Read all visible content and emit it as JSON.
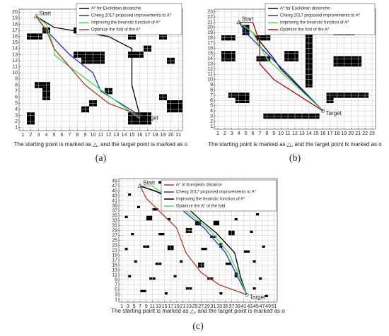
{
  "chart_data": [
    {
      "type": "line",
      "label": "(a)",
      "xlabel": "The starting point is marked as △, and the target point is marked as o",
      "xlim": [
        0.5,
        21.5
      ],
      "ylim": [
        0.5,
        20.5
      ],
      "xticks": [
        1,
        2,
        3,
        4,
        5,
        6,
        7,
        8,
        9,
        10,
        11,
        12,
        13,
        14,
        15,
        16,
        17,
        18,
        19,
        20,
        21
      ],
      "yticks": [
        1,
        2,
        3,
        4,
        5,
        6,
        7,
        8,
        9,
        10,
        11,
        12,
        13,
        14,
        15,
        16,
        17,
        18,
        19,
        20
      ],
      "grid": true,
      "legend": "upper right",
      "annotations": [
        "Start",
        "Target"
      ],
      "obstacles": [
        [
          1.5,
          15.5,
          2,
          1
        ],
        [
          3.5,
          16.5,
          1,
          1
        ],
        [
          7.5,
          16.5,
          2,
          1
        ],
        [
          11.5,
          16.5,
          3,
          1
        ],
        [
          17.5,
          16.5,
          2,
          1
        ],
        [
          14.5,
          15.5,
          1,
          1
        ],
        [
          7.5,
          12.5,
          4,
          1
        ],
        [
          8.5,
          11.5,
          3,
          1
        ],
        [
          14.5,
          12.5,
          2,
          1
        ],
        [
          16.5,
          13.5,
          1,
          1
        ],
        [
          18.5,
          15.5,
          1,
          1
        ],
        [
          19.5,
          11.5,
          1,
          1
        ],
        [
          2.5,
          7.5,
          2,
          1
        ],
        [
          3.5,
          5.5,
          1,
          2
        ],
        [
          11.5,
          6.5,
          1,
          1
        ],
        [
          8.5,
          3.5,
          1,
          1
        ],
        [
          9.5,
          4.5,
          1,
          1
        ],
        [
          14.5,
          1.5,
          3,
          2
        ],
        [
          19.5,
          3.5,
          2,
          2
        ],
        [
          18.5,
          5.5,
          1,
          1
        ],
        [
          1.5,
          1.5,
          1,
          2
        ]
      ],
      "series": [
        {
          "name": "A* for Euclidean distanche",
          "color": "#000000",
          "x": [
            2.7,
            5,
            12,
            15,
            15,
            16
          ],
          "y": [
            19.3,
            17.5,
            16,
            14,
            8,
            3
          ]
        },
        {
          "name": "Cheng 2017 proposed improvements to A*",
          "color": "#1f2fbf",
          "x": [
            2.7,
            4,
            7,
            10,
            11,
            16
          ],
          "y": [
            19.3,
            17,
            13,
            10,
            7,
            3
          ]
        },
        {
          "name": "Improving the heuristic function of A*",
          "color": "#4cd94c",
          "x": [
            2.7,
            4,
            5,
            5,
            7,
            16
          ],
          "y": [
            19.3,
            18,
            14,
            13,
            11,
            2.5
          ]
        },
        {
          "name": "Optimize the fold of the A*",
          "color": "#a23b2a",
          "x": [
            2.7,
            4,
            5,
            9,
            12,
            16
          ],
          "y": [
            19.3,
            17,
            14,
            8,
            5,
            3
          ]
        }
      ]
    },
    {
      "type": "line",
      "label": "(b)",
      "xlabel": "The starting point is marked as △, and the target point is marked as o",
      "xlim": [
        0.5,
        23.5
      ],
      "ylim": [
        0.5,
        23.5
      ],
      "xticks": [
        1,
        2,
        3,
        4,
        5,
        6,
        7,
        8,
        9,
        10,
        11,
        12,
        13,
        14,
        15,
        16,
        17,
        18,
        19,
        20,
        21,
        22,
        23
      ],
      "yticks": [
        1,
        2,
        3,
        4,
        5,
        6,
        7,
        8,
        9,
        10,
        11,
        12,
        13,
        14,
        15,
        16,
        17,
        18,
        19,
        20,
        21,
        22,
        23
      ],
      "grid": true,
      "legend": "upper right",
      "annotations": [
        "Start",
        "Target"
      ],
      "obstacles": [
        [
          4.5,
          18.5,
          1,
          2
        ],
        [
          1.5,
          17.5,
          2,
          1
        ],
        [
          6.5,
          17.5,
          2,
          1
        ],
        [
          17.5,
          18.5,
          3,
          1
        ],
        [
          1.5,
          13.5,
          2,
          2
        ],
        [
          6.5,
          13.5,
          2,
          1
        ],
        [
          10.5,
          13.5,
          2,
          2
        ],
        [
          17.5,
          12.5,
          4,
          2
        ],
        [
          2.5,
          6.5,
          1,
          1
        ],
        [
          3.5,
          5.5,
          2,
          2
        ],
        [
          16.5,
          6.5,
          6,
          1
        ],
        [
          16.5,
          5.5,
          1,
          1
        ],
        [
          13.5,
          8.5,
          1,
          12
        ],
        [
          7.5,
          2.5,
          8,
          1
        ]
      ],
      "series": [
        {
          "name": "A* for Euclidean distanche",
          "color": "#000000",
          "x": [
            4,
            6,
            9,
            10,
            16
          ],
          "y": [
            21,
            19,
            14,
            12,
            4
          ]
        },
        {
          "name": "Cheng 2017 proposed improvements to A*",
          "color": "#1f2fbf",
          "x": [
            4,
            5,
            8,
            11,
            16
          ],
          "y": [
            21,
            19,
            15,
            11,
            4
          ]
        },
        {
          "name": "Improving the heuristic function of A*",
          "color": "#4cd94c",
          "x": [
            4,
            6,
            8,
            16
          ],
          "y": [
            21,
            19,
            14,
            4
          ]
        },
        {
          "name": "Optimize the fold of the A*",
          "color": "#c00000",
          "x": [
            4,
            6,
            7,
            7,
            9,
            16
          ],
          "y": [
            21,
            21,
            17,
            13,
            10,
            4
          ]
        }
      ]
    },
    {
      "type": "line",
      "label": "(c)",
      "xlabel": "The starting point is marked as △, and the target point is marked as o",
      "xlim": [
        0,
        52
      ],
      "ylim": [
        0,
        50
      ],
      "xticks": [
        1,
        3,
        5,
        7,
        9,
        11,
        13,
        15,
        17,
        19,
        21,
        23,
        25,
        27,
        29,
        31,
        33,
        35,
        37,
        39,
        41,
        43,
        45,
        47,
        49,
        51
      ],
      "yticks": [
        1,
        3,
        5,
        7,
        9,
        11,
        13,
        15,
        17,
        19,
        21,
        23,
        25,
        27,
        29,
        31,
        33,
        35,
        37,
        39,
        41,
        43,
        45,
        47,
        49
      ],
      "grid": true,
      "legend": "upper right",
      "annotations": [
        "Start",
        "Target"
      ],
      "obstacles": [
        [
          13,
          48,
          1,
          1
        ],
        [
          24,
          47,
          1,
          1
        ],
        [
          3,
          43,
          1,
          1
        ],
        [
          16,
          42,
          2,
          1
        ],
        [
          27,
          43,
          1,
          1
        ],
        [
          44,
          44,
          1,
          1
        ],
        [
          6,
          38,
          1,
          1
        ],
        [
          11,
          37,
          2,
          1
        ],
        [
          20,
          38,
          1,
          2
        ],
        [
          33,
          38,
          1,
          1
        ],
        [
          40,
          40,
          1,
          1
        ],
        [
          2,
          34,
          1,
          1
        ],
        [
          9,
          33,
          2,
          2
        ],
        [
          16,
          33,
          1,
          1
        ],
        [
          25,
          31,
          2,
          2
        ],
        [
          31,
          31,
          2,
          2
        ],
        [
          38,
          33,
          1,
          1
        ],
        [
          45,
          35,
          1,
          1
        ],
        [
          4,
          27,
          1,
          1
        ],
        [
          13,
          27,
          2,
          1
        ],
        [
          22,
          28,
          2,
          2
        ],
        [
          30,
          26,
          2,
          1
        ],
        [
          36,
          27,
          2,
          2
        ],
        [
          43,
          28,
          1,
          1
        ],
        [
          2,
          21,
          1,
          1
        ],
        [
          8,
          22,
          2,
          1
        ],
        [
          16,
          21,
          2,
          2
        ],
        [
          27,
          21,
          2,
          1
        ],
        [
          33,
          22,
          1,
          2
        ],
        [
          41,
          20,
          2,
          1
        ],
        [
          47,
          22,
          1,
          1
        ],
        [
          5,
          16,
          1,
          1
        ],
        [
          12,
          15,
          2,
          1
        ],
        [
          20,
          16,
          1,
          1
        ],
        [
          26,
          14,
          2,
          2
        ],
        [
          35,
          15,
          2,
          1
        ],
        [
          44,
          16,
          1,
          1
        ],
        [
          3,
          10,
          1,
          1
        ],
        [
          10,
          9,
          2,
          1
        ],
        [
          18,
          10,
          1,
          1
        ],
        [
          29,
          9,
          2,
          1
        ],
        [
          38,
          10,
          1,
          2
        ],
        [
          46,
          9,
          1,
          1
        ],
        [
          7,
          4,
          2,
          1
        ],
        [
          15,
          3,
          1,
          1
        ],
        [
          22,
          5,
          2,
          1
        ],
        [
          33,
          3,
          1,
          1
        ],
        [
          44,
          5,
          1,
          1
        ],
        [
          48,
          2,
          1,
          1
        ]
      ],
      "series": [
        {
          "name": "A* of European distance",
          "color": "#b5382c",
          "x": [
            7,
            9,
            14,
            19,
            22,
            27,
            33,
            42
          ],
          "y": [
            47,
            42,
            36,
            30,
            20,
            12,
            7,
            3
          ]
        },
        {
          "name": "Cheng 2017 proposed improvements to A*",
          "color": "#1f2fbf",
          "x": [
            7,
            12,
            18,
            22,
            28,
            35,
            42
          ],
          "y": [
            47,
            45,
            41,
            36,
            30,
            20,
            3
          ]
        },
        {
          "name": "Improving the heuristic function of A*",
          "color": "#000000",
          "x": [
            7,
            14,
            20,
            27,
            32,
            38,
            40,
            42
          ],
          "y": [
            47,
            44,
            41,
            33,
            28,
            20,
            10,
            3
          ]
        },
        {
          "name": "Optimize the A* of the fold",
          "color": "#4cd94c",
          "x": [
            7,
            11,
            17,
            24,
            30,
            36,
            39,
            42
          ],
          "y": [
            47,
            47,
            42,
            35,
            29,
            20,
            12,
            3
          ]
        }
      ]
    }
  ]
}
